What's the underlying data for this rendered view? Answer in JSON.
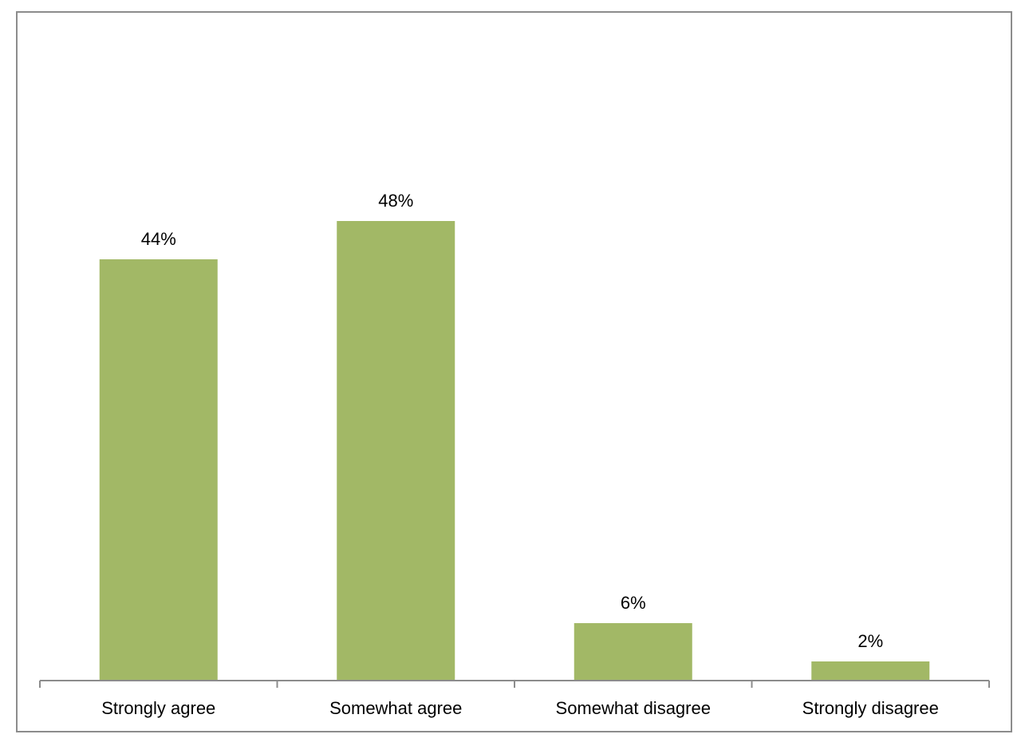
{
  "chart_data": {
    "type": "bar",
    "categories": [
      "Strongly agree",
      "Somewhat agree",
      "Somewhat disagree",
      "Strongly disagree"
    ],
    "values": [
      44,
      48,
      6,
      2
    ],
    "data_labels": [
      "44%",
      "48%",
      "6%",
      "2%"
    ],
    "unit": "%",
    "title": "",
    "xlabel": "",
    "ylabel": "",
    "ylim": [
      0,
      55
    ],
    "grid": false,
    "legend": "none",
    "bar_color": "#a2b866",
    "axis_color": "#8c8c8c"
  }
}
